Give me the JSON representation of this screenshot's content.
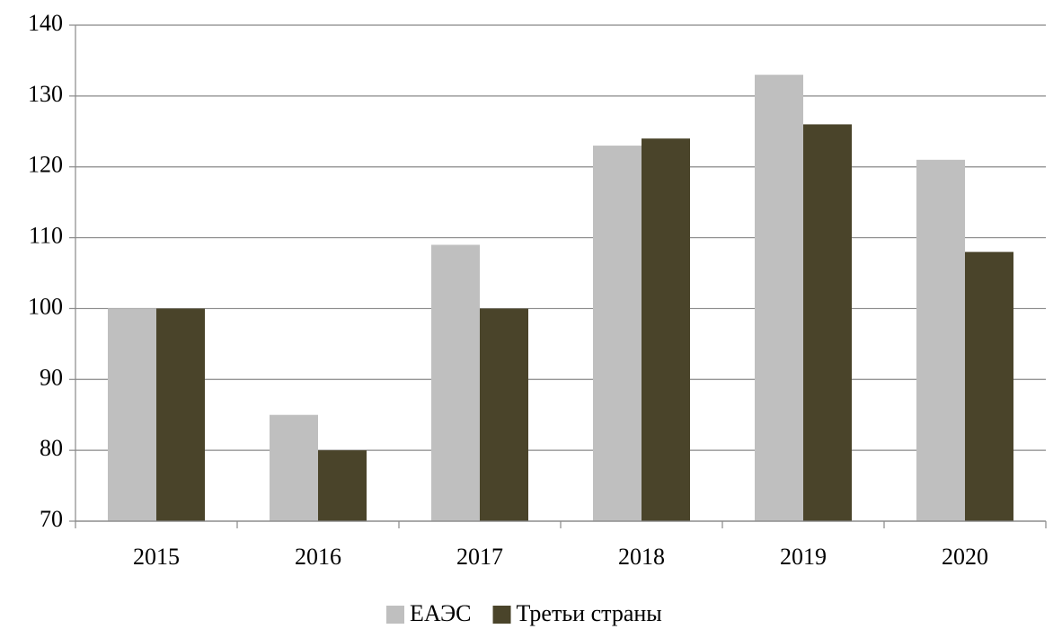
{
  "chart_data": {
    "type": "bar",
    "categories": [
      "2015",
      "2016",
      "2017",
      "2018",
      "2019",
      "2020"
    ],
    "series": [
      {
        "name": "ЕАЭС",
        "color": "#bfbfbf",
        "values": [
          100,
          85,
          109,
          123,
          133,
          121
        ]
      },
      {
        "name": "Третьи страны",
        "color": "#4a442a",
        "values": [
          100,
          80,
          100,
          124,
          126,
          108
        ]
      }
    ],
    "ylim": [
      70,
      140
    ],
    "yticks": [
      70,
      80,
      90,
      100,
      110,
      120,
      130,
      140
    ],
    "grid": true,
    "legend": "bottom"
  }
}
